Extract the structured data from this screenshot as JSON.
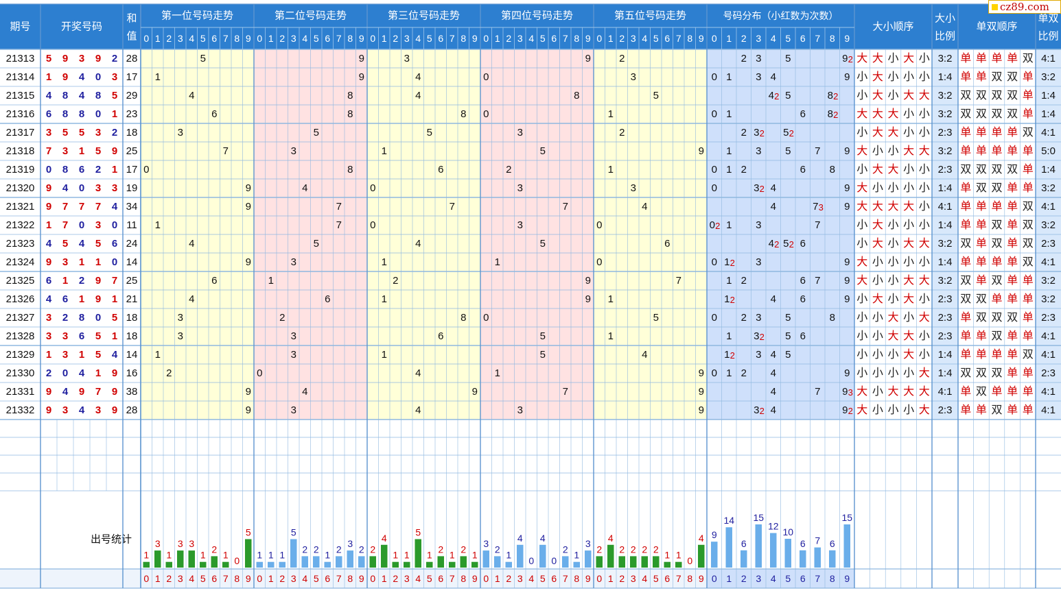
{
  "headers": {
    "issue": "期号",
    "draw": "开奖号码",
    "sum": "和值",
    "positions": [
      "第一位号码走势",
      "第二位号码走势",
      "第三位号码走势",
      "第四位号码走势",
      "第五位号码走势"
    ],
    "distribution": "号码分布（小红数为次数）",
    "size_order": "大小顺序",
    "size_ratio": "大小比例",
    "parity_order": "单双顺序",
    "parity_ratio": "单双比例"
  },
  "stats_label": "出号统计",
  "watermark": "cz89.com",
  "digits": [
    "0",
    "1",
    "2",
    "3",
    "4",
    "5",
    "6",
    "7",
    "8",
    "9"
  ],
  "colors": {
    "header_bg": "#2d7fd0",
    "header_text": "#ffffff",
    "zone1": "#ffffd8",
    "zone2": "#ffe2e2",
    "distribution_bg": "#cfe0fb",
    "ratio_bg": "#d8e8fb",
    "grid_line": "#8fb8e0",
    "odd_digit": "#d00000",
    "even_digit": "#1f1f9f",
    "green_bar": "#2b9a2b",
    "blue_bar": "#6aaeea",
    "red_count": "#d00000"
  },
  "chart_data": {
    "type": "table",
    "rows": [
      {
        "issue": "21313",
        "nums": [
          5,
          9,
          3,
          9,
          2
        ],
        "sum": 28,
        "size": [
          "大",
          "大",
          "小",
          "大",
          "小"
        ],
        "size_ratio": "3:2",
        "parity": [
          "单",
          "单",
          "单",
          "单",
          "双"
        ],
        "parity_ratio": "4:1"
      },
      {
        "issue": "21314",
        "nums": [
          1,
          9,
          4,
          0,
          3
        ],
        "sum": 17,
        "size": [
          "小",
          "大",
          "小",
          "小",
          "小"
        ],
        "size_ratio": "1:4",
        "parity": [
          "单",
          "单",
          "双",
          "双",
          "单"
        ],
        "parity_ratio": "3:2"
      },
      {
        "issue": "21315",
        "nums": [
          4,
          8,
          4,
          8,
          5
        ],
        "sum": 29,
        "size": [
          "小",
          "大",
          "小",
          "大",
          "大"
        ],
        "size_ratio": "3:2",
        "parity": [
          "双",
          "双",
          "双",
          "双",
          "单"
        ],
        "parity_ratio": "1:4"
      },
      {
        "issue": "21316",
        "nums": [
          6,
          8,
          8,
          0,
          1
        ],
        "sum": 23,
        "size": [
          "大",
          "大",
          "大",
          "小",
          "小"
        ],
        "size_ratio": "3:2",
        "parity": [
          "双",
          "双",
          "双",
          "双",
          "单"
        ],
        "parity_ratio": "1:4"
      },
      {
        "issue": "21317",
        "nums": [
          3,
          5,
          5,
          3,
          2
        ],
        "sum": 18,
        "size": [
          "小",
          "大",
          "大",
          "小",
          "小"
        ],
        "size_ratio": "2:3",
        "parity": [
          "单",
          "单",
          "单",
          "单",
          "双"
        ],
        "parity_ratio": "4:1"
      },
      {
        "issue": "21318",
        "nums": [
          7,
          3,
          1,
          5,
          9
        ],
        "sum": 25,
        "size": [
          "大",
          "小",
          "小",
          "大",
          "大"
        ],
        "size_ratio": "3:2",
        "parity": [
          "单",
          "单",
          "单",
          "单",
          "单"
        ],
        "parity_ratio": "5:0"
      },
      {
        "issue": "21319",
        "nums": [
          0,
          8,
          6,
          2,
          1
        ],
        "sum": 17,
        "size": [
          "小",
          "大",
          "大",
          "小",
          "小"
        ],
        "size_ratio": "2:3",
        "parity": [
          "双",
          "双",
          "双",
          "双",
          "单"
        ],
        "parity_ratio": "1:4"
      },
      {
        "issue": "21320",
        "nums": [
          9,
          4,
          0,
          3,
          3
        ],
        "sum": 19,
        "size": [
          "大",
          "小",
          "小",
          "小",
          "小"
        ],
        "size_ratio": "1:4",
        "parity": [
          "单",
          "双",
          "双",
          "单",
          "单"
        ],
        "parity_ratio": "3:2"
      },
      {
        "issue": "21321",
        "nums": [
          9,
          7,
          7,
          7,
          4
        ],
        "sum": 34,
        "size": [
          "大",
          "大",
          "大",
          "大",
          "小"
        ],
        "size_ratio": "4:1",
        "parity": [
          "单",
          "单",
          "单",
          "单",
          "双"
        ],
        "parity_ratio": "4:1"
      },
      {
        "issue": "21322",
        "nums": [
          1,
          7,
          0,
          3,
          0
        ],
        "sum": 11,
        "size": [
          "小",
          "大",
          "小",
          "小",
          "小"
        ],
        "size_ratio": "1:4",
        "parity": [
          "单",
          "单",
          "双",
          "单",
          "双"
        ],
        "parity_ratio": "3:2"
      },
      {
        "issue": "21323",
        "nums": [
          4,
          5,
          4,
          5,
          6
        ],
        "sum": 24,
        "size": [
          "小",
          "大",
          "小",
          "大",
          "大"
        ],
        "size_ratio": "3:2",
        "parity": [
          "双",
          "单",
          "双",
          "单",
          "双"
        ],
        "parity_ratio": "2:3"
      },
      {
        "issue": "21324",
        "nums": [
          9,
          3,
          1,
          1,
          0
        ],
        "sum": 14,
        "size": [
          "大",
          "小",
          "小",
          "小",
          "小"
        ],
        "size_ratio": "1:4",
        "parity": [
          "单",
          "单",
          "单",
          "单",
          "双"
        ],
        "parity_ratio": "4:1"
      },
      {
        "issue": "21325",
        "nums": [
          6,
          1,
          2,
          9,
          7
        ],
        "sum": 25,
        "size": [
          "大",
          "小",
          "小",
          "大",
          "大"
        ],
        "size_ratio": "3:2",
        "parity": [
          "双",
          "单",
          "双",
          "单",
          "单"
        ],
        "parity_ratio": "3:2"
      },
      {
        "issue": "21326",
        "nums": [
          4,
          6,
          1,
          9,
          1
        ],
        "sum": 21,
        "size": [
          "小",
          "大",
          "小",
          "大",
          "小"
        ],
        "size_ratio": "2:3",
        "parity": [
          "双",
          "双",
          "单",
          "单",
          "单"
        ],
        "parity_ratio": "3:2"
      },
      {
        "issue": "21327",
        "nums": [
          3,
          2,
          8,
          0,
          5
        ],
        "sum": 18,
        "size": [
          "小",
          "小",
          "大",
          "小",
          "大"
        ],
        "size_ratio": "2:3",
        "parity": [
          "单",
          "双",
          "双",
          "双",
          "单"
        ],
        "parity_ratio": "2:3"
      },
      {
        "issue": "21328",
        "nums": [
          3,
          3,
          6,
          5,
          1
        ],
        "sum": 18,
        "size": [
          "小",
          "小",
          "大",
          "大",
          "小"
        ],
        "size_ratio": "2:3",
        "parity": [
          "单",
          "单",
          "双",
          "单",
          "单"
        ],
        "parity_ratio": "4:1"
      },
      {
        "issue": "21329",
        "nums": [
          1,
          3,
          1,
          5,
          4
        ],
        "sum": 14,
        "size": [
          "小",
          "小",
          "小",
          "大",
          "小"
        ],
        "size_ratio": "1:4",
        "parity": [
          "单",
          "单",
          "单",
          "单",
          "双"
        ],
        "parity_ratio": "4:1"
      },
      {
        "issue": "21330",
        "nums": [
          2,
          0,
          4,
          1,
          9
        ],
        "sum": 16,
        "size": [
          "小",
          "小",
          "小",
          "小",
          "大"
        ],
        "size_ratio": "1:4",
        "parity": [
          "双",
          "双",
          "双",
          "单",
          "单"
        ],
        "parity_ratio": "2:3"
      },
      {
        "issue": "21331",
        "nums": [
          9,
          4,
          9,
          7,
          9
        ],
        "sum": 38,
        "size": [
          "大",
          "小",
          "大",
          "大",
          "大"
        ],
        "size_ratio": "4:1",
        "parity": [
          "单",
          "双",
          "单",
          "单",
          "单"
        ],
        "parity_ratio": "4:1"
      },
      {
        "issue": "21332",
        "nums": [
          9,
          3,
          4,
          3,
          9
        ],
        "sum": 28,
        "size": [
          "大",
          "小",
          "小",
          "小",
          "大"
        ],
        "size_ratio": "2:3",
        "parity": [
          "单",
          "单",
          "双",
          "单",
          "单"
        ],
        "parity_ratio": "4:1"
      }
    ],
    "position_counts": [
      [
        1,
        3,
        1,
        3,
        3,
        1,
        2,
        1,
        0,
        5
      ],
      [
        1,
        1,
        1,
        5,
        2,
        2,
        1,
        2,
        3,
        2
      ],
      [
        2,
        4,
        1,
        1,
        5,
        1,
        2,
        1,
        2,
        1
      ],
      [
        3,
        2,
        1,
        4,
        0,
        4,
        0,
        2,
        1,
        3
      ],
      [
        2,
        4,
        2,
        2,
        2,
        2,
        1,
        1,
        0,
        4
      ]
    ],
    "distribution_counts": [
      9,
      14,
      6,
      15,
      12,
      10,
      6,
      7,
      6,
      15
    ]
  }
}
